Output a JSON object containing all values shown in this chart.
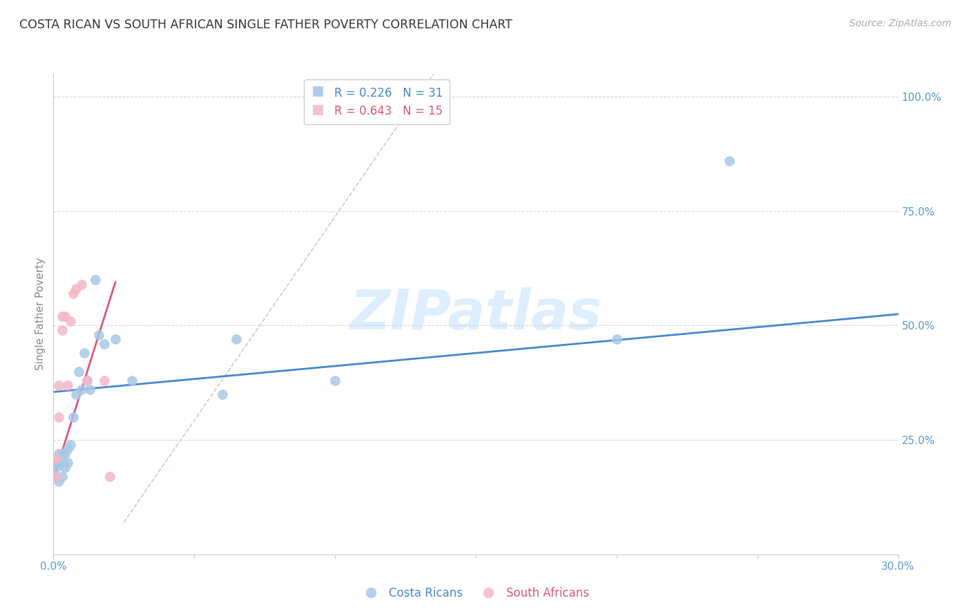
{
  "title": "COSTA RICAN VS SOUTH AFRICAN SINGLE FATHER POVERTY CORRELATION CHART",
  "source": "Source: ZipAtlas.com",
  "ylabel": "Single Father Poverty",
  "xlim": [
    0.0,
    0.3
  ],
  "ylim": [
    0.0,
    1.05
  ],
  "ytick_positions": [
    0.25,
    0.5,
    0.75,
    1.0
  ],
  "ytick_labels": [
    "25.0%",
    "50.0%",
    "75.0%",
    "100.0%"
  ],
  "xtick_positions": [
    0.0,
    0.05,
    0.1,
    0.15,
    0.2,
    0.25,
    0.3
  ],
  "xtick_labels": [
    "0.0%",
    "",
    "",
    "",
    "",
    "",
    "30.0%"
  ],
  "r_costa": 0.226,
  "n_costa": 31,
  "r_south": 0.643,
  "n_south": 15,
  "blue_scatter_color": "#a8c8e8",
  "pink_scatter_color": "#f4b8c8",
  "blue_line_color": "#4488cc",
  "pink_line_color": "#dd5577",
  "diag_color": "#ddbbbb",
  "axis_tick_color": "#5599cc",
  "watermark_color": "#ddeeff",
  "costa_rican_x": [
    0.001,
    0.001,
    0.001,
    0.002,
    0.002,
    0.002,
    0.003,
    0.003,
    0.003,
    0.004,
    0.004,
    0.005,
    0.005,
    0.006,
    0.007,
    0.008,
    0.009,
    0.01,
    0.011,
    0.012,
    0.013,
    0.015,
    0.016,
    0.018,
    0.022,
    0.028,
    0.06,
    0.065,
    0.1,
    0.2,
    0.24
  ],
  "costa_rican_y": [
    0.17,
    0.19,
    0.2,
    0.16,
    0.2,
    0.22,
    0.17,
    0.2,
    0.22,
    0.19,
    0.22,
    0.2,
    0.23,
    0.24,
    0.3,
    0.35,
    0.4,
    0.36,
    0.44,
    0.38,
    0.36,
    0.6,
    0.48,
    0.46,
    0.47,
    0.38,
    0.35,
    0.47,
    0.38,
    0.47,
    0.86
  ],
  "south_african_x": [
    0.001,
    0.001,
    0.002,
    0.002,
    0.003,
    0.003,
    0.004,
    0.005,
    0.006,
    0.007,
    0.008,
    0.01,
    0.012,
    0.018,
    0.02
  ],
  "south_african_y": [
    0.17,
    0.21,
    0.3,
    0.37,
    0.49,
    0.52,
    0.52,
    0.37,
    0.51,
    0.57,
    0.58,
    0.59,
    0.38,
    0.38,
    0.17
  ],
  "blue_regline_x": [
    0.0,
    0.3
  ],
  "blue_regline_y": [
    0.355,
    0.525
  ],
  "pink_regline_x": [
    0.0,
    0.022
  ],
  "pink_regline_y": [
    0.165,
    0.595
  ]
}
